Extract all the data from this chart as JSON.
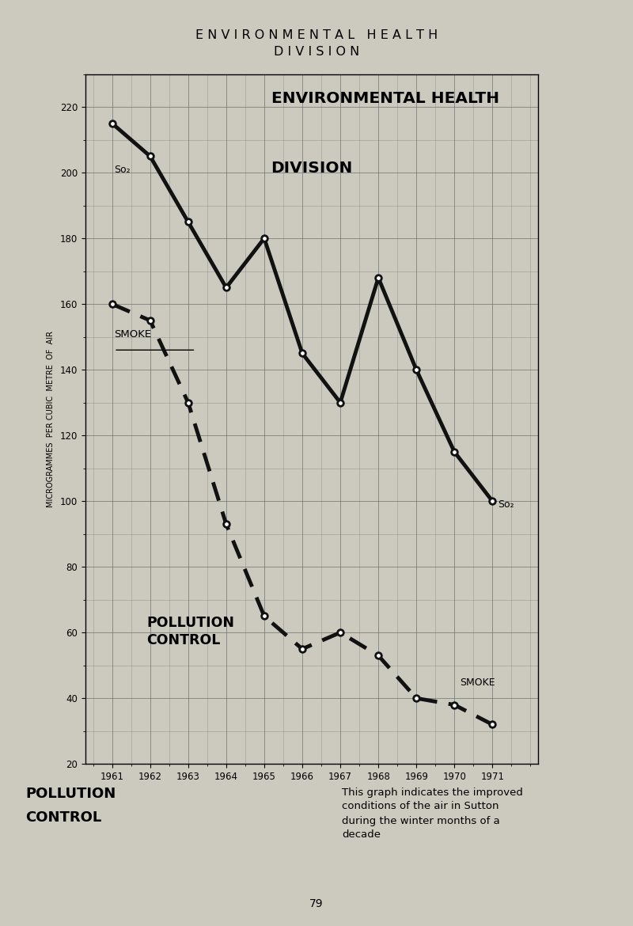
{
  "title_line1": "E N V I R O N M E N T A L   H E A L T H",
  "title_line2": "D I V I S I O N",
  "chart_title_line1": "ENVIRONMENTAL HEALTH",
  "chart_title_line2": "DIVISION",
  "pollution_control_in_chart": "POLLUTION\nCONTROL",
  "years": [
    1961,
    1962,
    1963,
    1964,
    1965,
    1966,
    1967,
    1968,
    1969,
    1970,
    1971
  ],
  "so2": [
    215,
    205,
    185,
    165,
    180,
    145,
    130,
    168,
    140,
    115,
    100
  ],
  "smoke": [
    160,
    155,
    130,
    93,
    65,
    55,
    60,
    53,
    40,
    38,
    32
  ],
  "ylim": [
    20,
    230
  ],
  "yticks": [
    20,
    40,
    60,
    80,
    100,
    120,
    140,
    160,
    180,
    200,
    220
  ],
  "ylabel": "MICROGRAMMES  PER CUBIC  METRE  OF  AIR",
  "xlabel_years": [
    "1961",
    "1962",
    "1963",
    "1964",
    "1965",
    "1966",
    "1967",
    "1968",
    "1969",
    "1970",
    "1971"
  ],
  "line_color": "#111111",
  "bg_color": "#ccc9be",
  "so2_label": "So₂",
  "smoke_label": "SMOKE",
  "bottom_text_left_1": "POLLUTION",
  "bottom_text_left_2": "CONTROL",
  "bottom_text_right": "This graph indicates the improved\nconditions of the air in Sutton\nduring the winter months of a\ndecade",
  "page_number": "79"
}
